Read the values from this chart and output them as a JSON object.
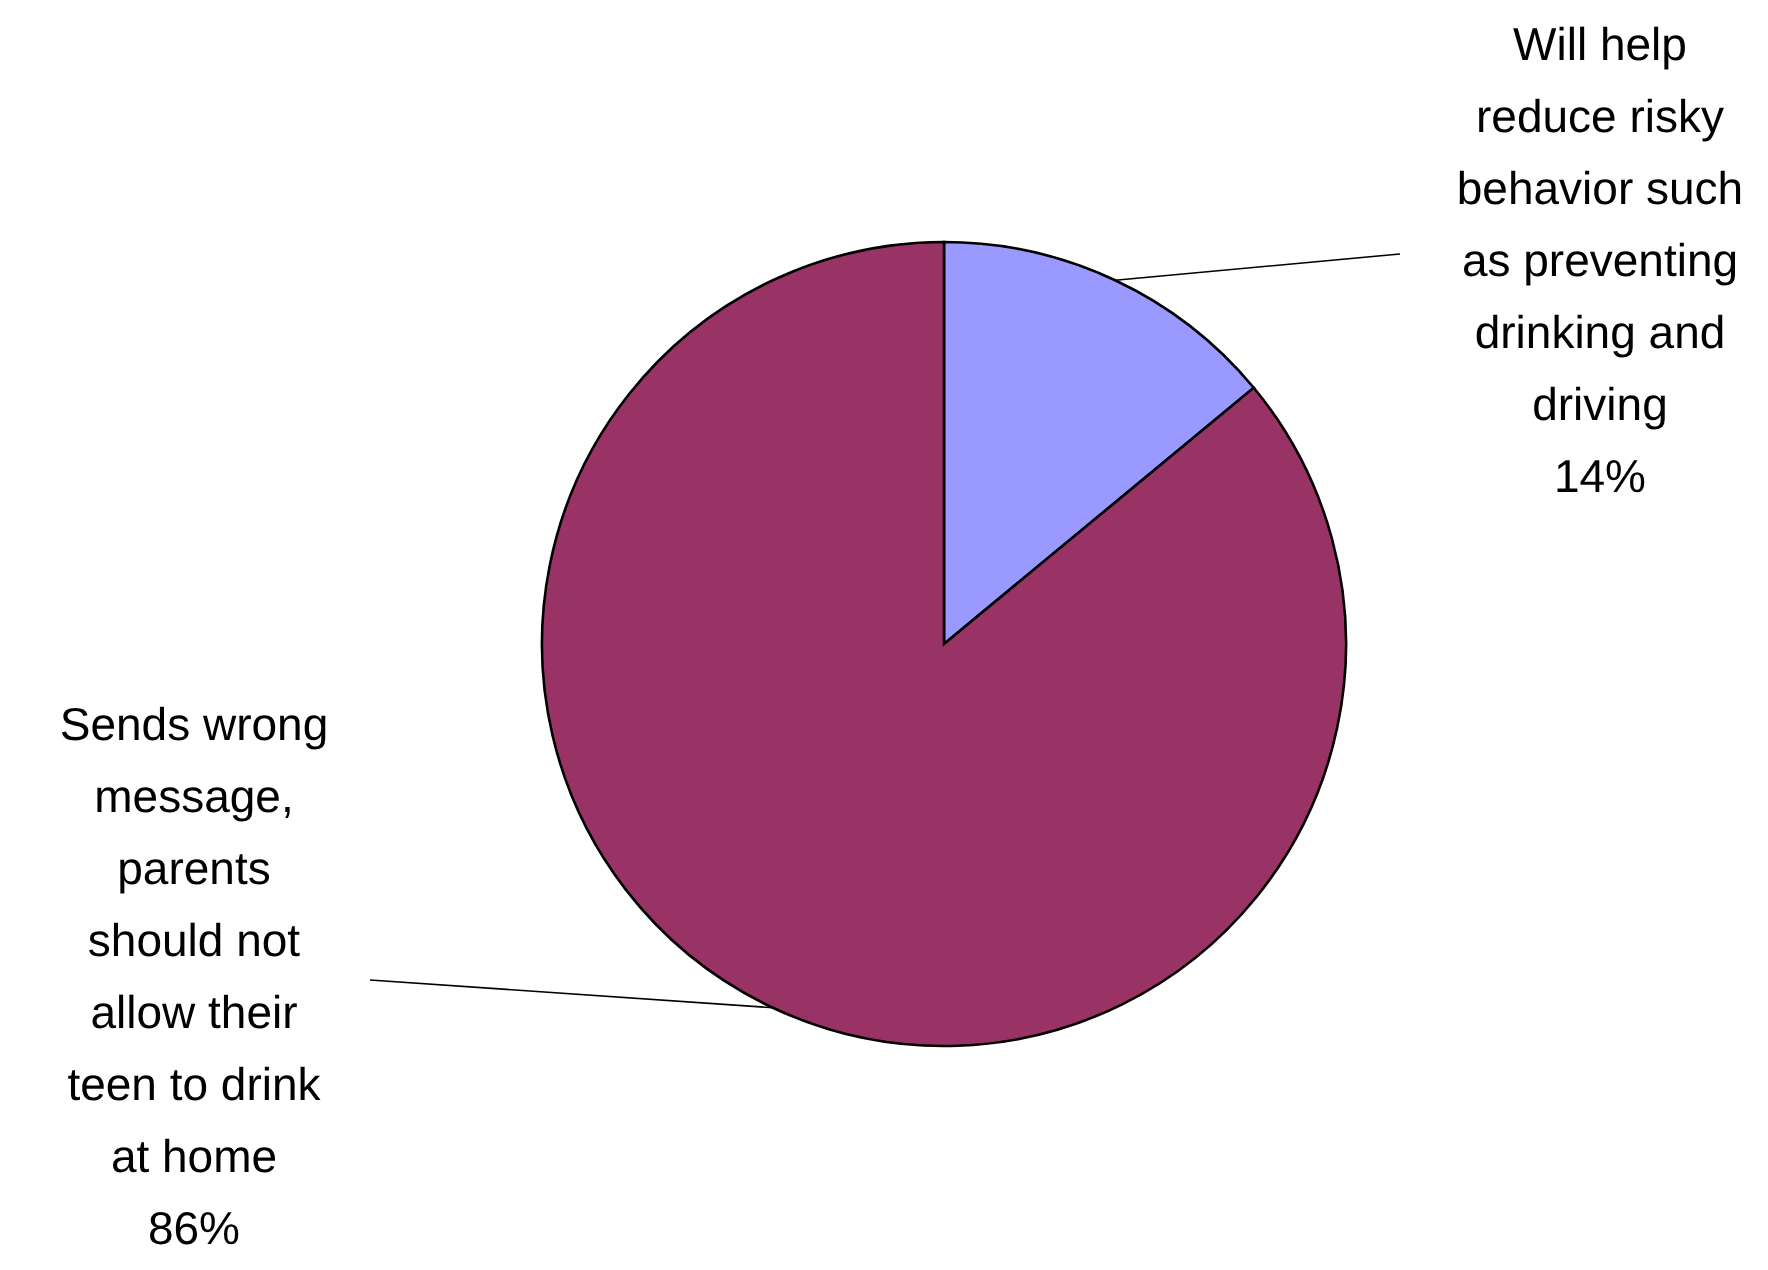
{
  "chart_data": {
    "type": "pie",
    "categories": [
      "Will help reduce risky behavior such as preventing drinking and driving",
      "Sends wrong message, parents should not allow their teen to drink at home"
    ],
    "values": [
      14,
      86
    ],
    "colors": [
      "#9999ff",
      "#993366"
    ],
    "value_labels": [
      "14%",
      "86%"
    ]
  }
}
